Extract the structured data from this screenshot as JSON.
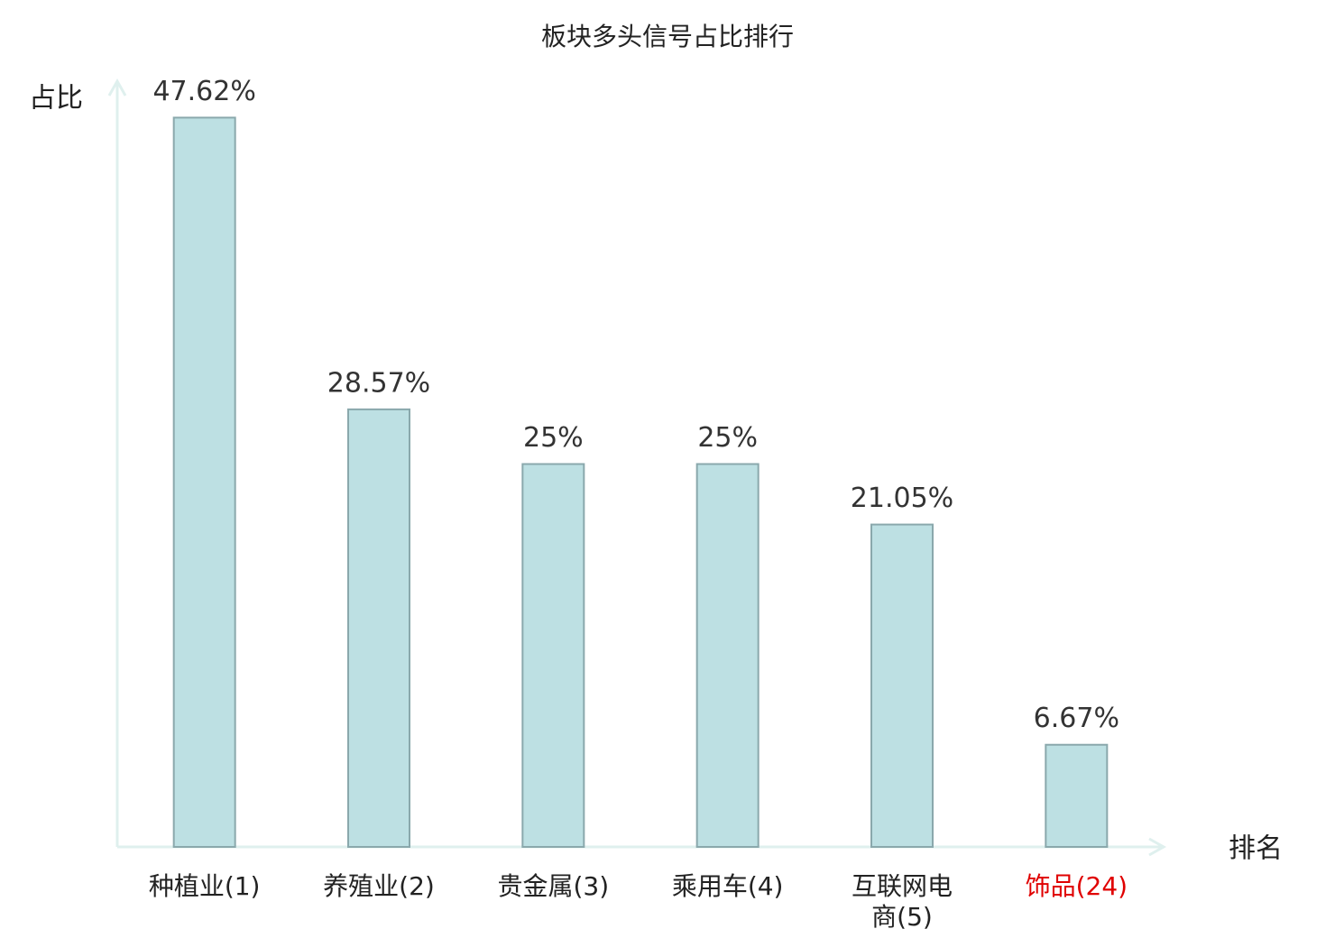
{
  "chart_data": {
    "type": "bar",
    "title": "板块多头信号占比排行",
    "y_label": "占比",
    "x_label": "排名",
    "categories": [
      "种植业(1)",
      "养殖业(2)",
      "贵金属(3)",
      "乘用车(4)",
      "互联网电商(5)",
      "饰品(24)"
    ],
    "category_colors": [
      "#222222",
      "#222222",
      "#222222",
      "#222222",
      "#222222",
      "#e00000"
    ],
    "values": [
      47.62,
      28.57,
      25,
      25,
      21.05,
      6.67
    ],
    "value_labels": [
      "47.62%",
      "28.57%",
      "25%",
      "25%",
      "21.05%",
      "6.67%"
    ],
    "color": "#bde0e3",
    "edge_color": "#8aa8ac",
    "axis_color": "#dff0ee",
    "ylim": [
      0,
      50
    ]
  }
}
